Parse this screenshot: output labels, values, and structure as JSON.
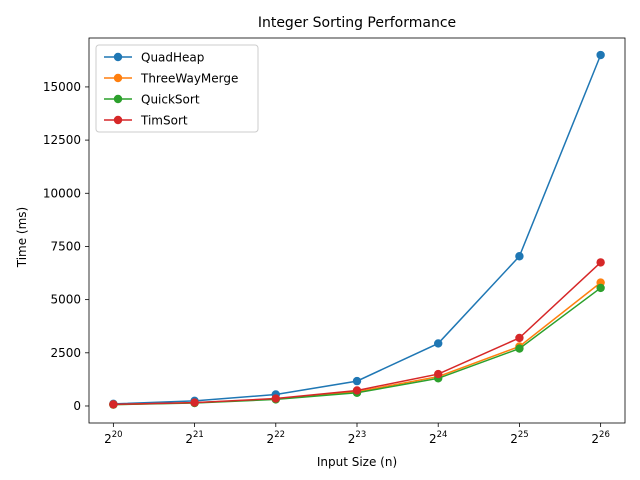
{
  "chart_data": {
    "type": "line",
    "title": "Integer Sorting Performance",
    "xlabel": "Input Size (n)",
    "ylabel": "Time (ms)",
    "x_ticks": [
      {
        "base": "2",
        "exp": "20"
      },
      {
        "base": "2",
        "exp": "21"
      },
      {
        "base": "2",
        "exp": "22"
      },
      {
        "base": "2",
        "exp": "23"
      },
      {
        "base": "2",
        "exp": "24"
      },
      {
        "base": "2",
        "exp": "25"
      },
      {
        "base": "2",
        "exp": "26"
      }
    ],
    "x": [
      20,
      21,
      22,
      23,
      24,
      25,
      26
    ],
    "x_scale": "log2",
    "ylim": [
      -800,
      17300
    ],
    "y_ticks": [
      0,
      2500,
      5000,
      7500,
      10000,
      12500,
      15000
    ],
    "grid": false,
    "legend_position": "top-left",
    "series": [
      {
        "name": "QuadHeap",
        "color": "#1f77b4",
        "values": [
          100,
          240,
          540,
          1170,
          2940,
          7040,
          16500
        ]
      },
      {
        "name": "ThreeWayMerge",
        "color": "#ff7f0e",
        "values": [
          70,
          150,
          330,
          670,
          1380,
          2800,
          5800
        ]
      },
      {
        "name": "QuickSort",
        "color": "#2ca02c",
        "values": [
          65,
          140,
          310,
          620,
          1300,
          2700,
          5550
        ]
      },
      {
        "name": "TimSort",
        "color": "#d62728",
        "values": [
          75,
          160,
          350,
          730,
          1500,
          3200,
          6750
        ]
      }
    ]
  }
}
